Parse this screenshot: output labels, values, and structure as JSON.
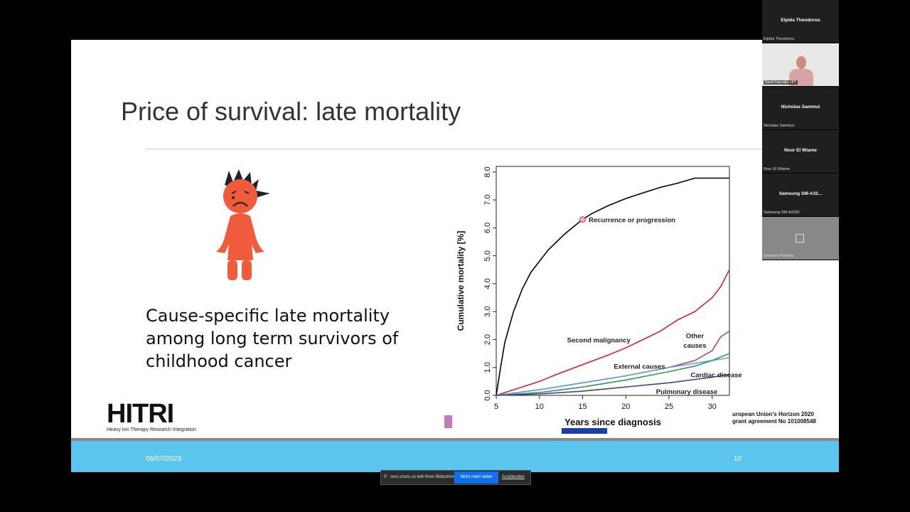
{
  "slide": {
    "title": "Price of survival: late mortality",
    "caption": "Cause-specific late mortality among long term survivors of childhood cancer",
    "logo_text": "HITRI",
    "logo_sub": "Heavy Ion Therapy Research Integration",
    "eu_text_line1": "uropean Union's Horizon 2020",
    "eu_text_line2": "grant agreement No 101008548",
    "footer_date": "06/07/2023",
    "footer_page": "10"
  },
  "chart_data": {
    "type": "line",
    "xlabel": "Years since diagnosis",
    "ylabel": "Cumulative mortality [%]",
    "xlim": [
      5,
      32
    ],
    "ylim": [
      0,
      8.2
    ],
    "xticks": [
      "5",
      "10",
      "15",
      "20",
      "25",
      "30"
    ],
    "yticks": [
      "0.0",
      "1.0",
      "2.0",
      "3.0",
      "4.0",
      "5.0",
      "6.0",
      "7.0",
      "8.0"
    ],
    "series": [
      {
        "name": "Recurrence or progression",
        "color": "#000000",
        "x": [
          5,
          5.5,
          6,
          7,
          8,
          9,
          10,
          11,
          12,
          13,
          14,
          15,
          16,
          18,
          20,
          22,
          24,
          26,
          28,
          30,
          32
        ],
        "y": [
          0,
          1.0,
          1.9,
          3.0,
          3.8,
          4.4,
          4.8,
          5.2,
          5.5,
          5.8,
          6.05,
          6.3,
          6.5,
          6.8,
          7.05,
          7.25,
          7.45,
          7.6,
          7.78,
          7.78,
          7.78
        ]
      },
      {
        "name": "Second malignancy",
        "color": "#d0213a",
        "x": [
          5,
          8,
          10,
          12,
          15,
          18,
          20,
          22,
          24,
          26,
          28,
          30,
          31,
          32
        ],
        "y": [
          0,
          0.3,
          0.5,
          0.75,
          1.1,
          1.45,
          1.7,
          2.0,
          2.3,
          2.7,
          3.0,
          3.5,
          3.9,
          4.5
        ]
      },
      {
        "name": "Other causes",
        "color": "#a9448f",
        "x": [
          5,
          10,
          15,
          20,
          25,
          28,
          30,
          31,
          32
        ],
        "y": [
          0,
          0.2,
          0.45,
          0.7,
          1.0,
          1.25,
          1.6,
          2.1,
          2.3
        ]
      },
      {
        "name": "External causes",
        "color": "#6aa0d8",
        "x": [
          5,
          10,
          15,
          20,
          25,
          30,
          32
        ],
        "y": [
          0,
          0.2,
          0.45,
          0.7,
          1.0,
          1.25,
          1.35
        ]
      },
      {
        "name": "Cardiac disease",
        "color": "#2e9a57",
        "x": [
          5,
          10,
          15,
          20,
          25,
          28,
          30,
          32
        ],
        "y": [
          0,
          0.1,
          0.3,
          0.55,
          0.85,
          1.05,
          1.25,
          1.5
        ]
      },
      {
        "name": "Pulmonary disease",
        "color": "#3a4a8c",
        "x": [
          5,
          10,
          15,
          20,
          25,
          30,
          32
        ],
        "y": [
          0,
          0.05,
          0.15,
          0.3,
          0.45,
          0.65,
          0.75
        ]
      }
    ],
    "annotations": [
      {
        "text": "Recurrence or progression",
        "x": 15.7,
        "y": 6.2
      },
      {
        "text": "Second malignancy",
        "x": 13.2,
        "y": 1.9
      },
      {
        "text": "Other",
        "x": 28,
        "y": 2.05
      },
      {
        "text": "causes",
        "x": 28,
        "y": 1.7
      },
      {
        "text": "External causes",
        "x": 18.6,
        "y": 0.95
      },
      {
        "text": "Cardiac disease",
        "x": 27.5,
        "y": 0.65
      },
      {
        "text": "Pulmonary disease",
        "x": 23.5,
        "y": 0.05
      }
    ]
  },
  "participants": [
    {
      "title": "Elpida Theodorou",
      "name": "Elpida Theodorou",
      "kind": "name"
    },
    {
      "title": "",
      "name": "Semi Harrabi, HIT",
      "kind": "video"
    },
    {
      "title": "Nicholas Sammut",
      "name": "Nicholas Sammut",
      "kind": "name"
    },
    {
      "title": "Nour El Wiame",
      "name": "Nour El Wiame",
      "kind": "name"
    },
    {
      "title": "Samsung  SM-A32...",
      "name": "Samsung SM-A325F",
      "kind": "name"
    },
    {
      "title": "",
      "name": "Giovanni Parrella",
      "kind": "grey"
    }
  ],
  "sharebar": {
    "pause_icon": "II",
    "text": "cern.zoom.us teilt Ihren Bildschirm.",
    "stop_label": "Nicht mehr teilen",
    "hide_label": "Ausblenden"
  }
}
